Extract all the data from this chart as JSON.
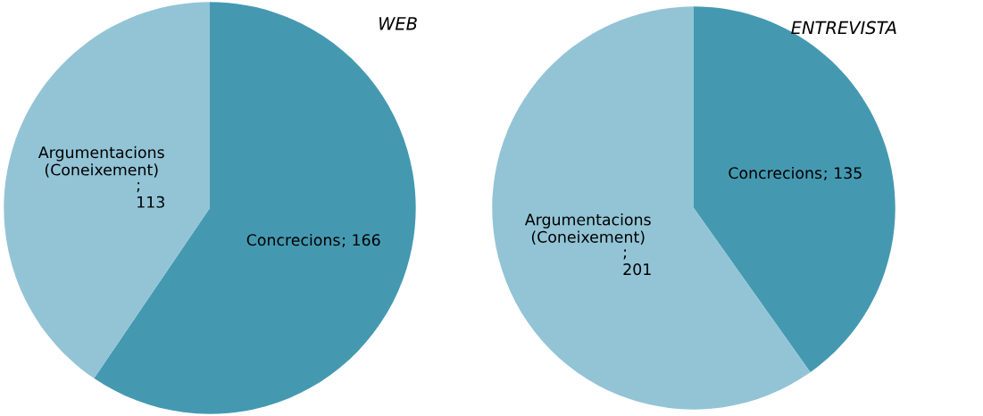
{
  "chart_data": [
    {
      "type": "pie",
      "title": "WEB",
      "categories": [
        "Concrecions",
        "Argumentacions\n(Coneixement)"
      ],
      "values": [
        166,
        113
      ],
      "colors": [
        "#4499b1",
        "#92c4d6"
      ],
      "value_labels": [
        "; 166",
        ";\n113"
      ]
    },
    {
      "type": "pie",
      "title": "ENTREVISTA",
      "categories": [
        "Concrecions",
        "Argumentacions\n(Coneixement)"
      ],
      "values": [
        135,
        201
      ],
      "colors": [
        "#4499b1",
        "#92c4d6"
      ],
      "value_labels": [
        "; 135",
        ";\n201"
      ]
    }
  ]
}
